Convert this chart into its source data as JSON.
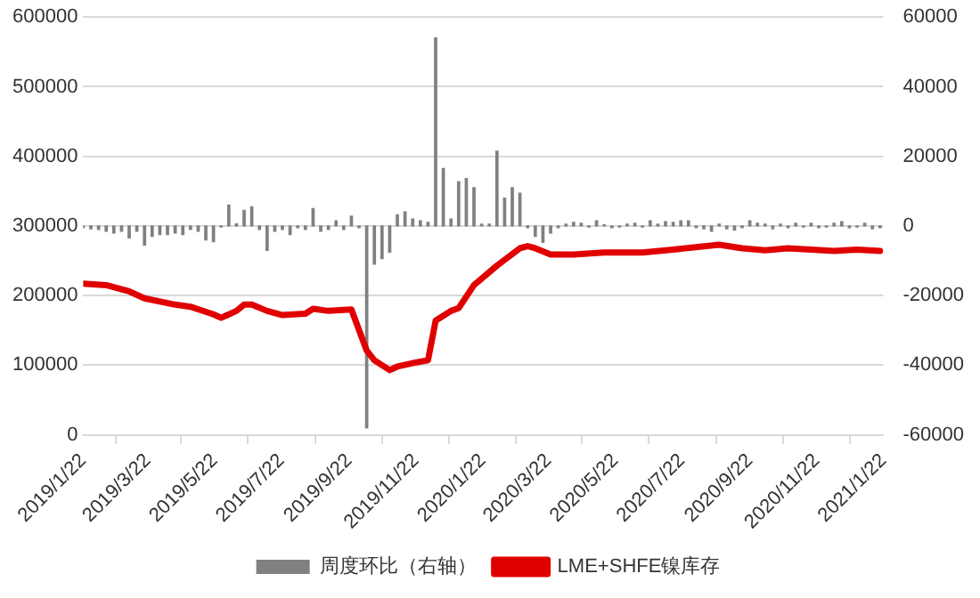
{
  "chart_data": {
    "type": "line",
    "grid": "y",
    "legend": "bottom",
    "xlim": [
      "2019-01-22",
      "2021-01-22"
    ],
    "xticks": [
      {
        "value": "2019-01-22",
        "label": "2019/1/22"
      },
      {
        "value": "2019-03-22",
        "label": "2019/3/22"
      },
      {
        "value": "2019-05-22",
        "label": "2019/5/22"
      },
      {
        "value": "2019-07-22",
        "label": "2019/7/22"
      },
      {
        "value": "2019-09-22",
        "label": "2019/9/22"
      },
      {
        "value": "2019-11-22",
        "label": "2019/11/22"
      },
      {
        "value": "2020-01-22",
        "label": "2020/1/22"
      },
      {
        "value": "2020-03-22",
        "label": "2020/3/22"
      },
      {
        "value": "2020-05-22",
        "label": "2020/5/22"
      },
      {
        "value": "2020-07-22",
        "label": "2020/7/22"
      },
      {
        "value": "2020-09-22",
        "label": "2020/9/22"
      },
      {
        "value": "2020-11-22",
        "label": "2020/11/22"
      },
      {
        "value": "2021-01-22",
        "label": "2021/1/22"
      }
    ],
    "ylim": [
      0,
      600000
    ],
    "yticks": [
      0,
      100000,
      200000,
      300000,
      400000,
      500000,
      600000
    ],
    "y2lim": [
      -60000,
      60000
    ],
    "y2ticks": [
      -60000,
      -40000,
      -20000,
      0,
      20000,
      40000,
      60000
    ],
    "series": [
      {
        "name": "周度环比（右轴）",
        "type": "bar",
        "axis": "y2",
        "color": "#808080",
        "x": [
          "2019-01-22",
          "2019-01-29",
          "2019-02-05",
          "2019-02-12",
          "2019-02-19",
          "2019-02-26",
          "2019-03-05",
          "2019-03-12",
          "2019-03-19",
          "2019-03-26",
          "2019-04-02",
          "2019-04-09",
          "2019-04-16",
          "2019-04-23",
          "2019-04-30",
          "2019-05-07",
          "2019-05-14",
          "2019-05-21",
          "2019-05-28",
          "2019-06-04",
          "2019-06-11",
          "2019-06-18",
          "2019-06-25",
          "2019-07-02",
          "2019-07-09",
          "2019-07-16",
          "2019-07-23",
          "2019-07-30",
          "2019-08-06",
          "2019-08-13",
          "2019-08-20",
          "2019-08-27",
          "2019-09-03",
          "2019-09-10",
          "2019-09-17",
          "2019-09-24",
          "2019-10-01",
          "2019-10-08",
          "2019-10-15",
          "2019-10-22",
          "2019-10-29",
          "2019-11-05",
          "2019-11-12",
          "2019-11-19",
          "2019-11-26",
          "2019-12-03",
          "2019-12-10",
          "2019-12-17",
          "2019-12-24",
          "2019-12-31",
          "2020-01-07",
          "2020-01-14",
          "2020-01-21",
          "2020-01-28",
          "2020-02-04",
          "2020-02-11",
          "2020-02-18",
          "2020-02-25",
          "2020-03-03",
          "2020-03-10",
          "2020-03-17",
          "2020-03-24",
          "2020-03-31",
          "2020-04-07",
          "2020-04-14",
          "2020-04-21",
          "2020-04-28",
          "2020-05-05",
          "2020-05-12",
          "2020-05-19",
          "2020-05-26",
          "2020-06-02",
          "2020-06-09",
          "2020-06-16",
          "2020-06-23",
          "2020-06-30",
          "2020-07-07",
          "2020-07-14",
          "2020-07-21",
          "2020-07-28",
          "2020-08-04",
          "2020-08-11",
          "2020-08-18",
          "2020-08-25",
          "2020-09-01",
          "2020-09-08",
          "2020-09-15",
          "2020-09-22",
          "2020-09-29",
          "2020-10-06",
          "2020-10-13",
          "2020-10-20",
          "2020-10-27",
          "2020-11-03",
          "2020-11-10",
          "2020-11-17",
          "2020-11-24",
          "2020-12-01",
          "2020-12-08",
          "2020-12-15",
          "2020-12-22",
          "2020-12-29",
          "2021-01-05",
          "2021-01-12",
          "2021-01-19"
        ],
        "values": [
          -500,
          -800,
          -1000,
          -1500,
          -2000,
          -1500,
          -3400,
          -1500,
          -5500,
          -3000,
          -2500,
          -2500,
          -2000,
          -2500,
          -1000,
          -1500,
          -4000,
          -4500,
          -300,
          6000,
          600,
          4500,
          5500,
          -1000,
          -7000,
          -1500,
          -1000,
          -2500,
          -500,
          -1000,
          5000,
          -1500,
          -1000,
          1500,
          -1000,
          2800,
          -500,
          -58000,
          -11000,
          -9400,
          -7500,
          3200,
          4000,
          2000,
          1500,
          1000,
          54000,
          16500,
          2000,
          12700,
          13600,
          11000,
          500,
          500,
          21500,
          8000,
          11000,
          9400,
          -500,
          -3000,
          -4700,
          -2000,
          -500,
          500,
          1000,
          800,
          -300,
          1500,
          300,
          -500,
          -300,
          500,
          800,
          -300,
          1500,
          500,
          1200,
          1000,
          1500,
          1500,
          -500,
          -800,
          -1500,
          500,
          -800,
          -1200,
          -500,
          1500,
          800,
          500,
          -800,
          500,
          -500,
          800,
          -300,
          800,
          -500,
          -300,
          800,
          1200,
          -500,
          -300,
          800,
          -800,
          -500
        ]
      },
      {
        "name": "LME+SHFE镍库存",
        "color": "#e00000",
        "x": [
          "2019-01-22",
          "2019-02-12",
          "2019-03-05",
          "2019-03-19",
          "2019-04-16",
          "2019-04-30",
          "2019-05-21",
          "2019-05-28",
          "2019-06-11",
          "2019-06-18",
          "2019-06-25",
          "2019-07-09",
          "2019-07-23",
          "2019-08-13",
          "2019-08-20",
          "2019-09-03",
          "2019-09-24",
          "2019-10-08",
          "2019-10-15",
          "2019-10-29",
          "2019-11-05",
          "2019-11-19",
          "2019-12-03",
          "2019-12-10",
          "2019-12-24",
          "2019-12-31",
          "2020-01-14",
          "2020-02-04",
          "2020-02-25",
          "2020-03-03",
          "2020-03-10",
          "2020-03-24",
          "2020-04-14",
          "2020-05-12",
          "2020-06-16",
          "2020-07-14",
          "2020-08-25",
          "2020-09-15",
          "2020-10-06",
          "2020-10-27",
          "2020-12-08",
          "2020-12-29",
          "2021-01-19"
        ],
        "values": [
          217000,
          215000,
          206000,
          196000,
          187000,
          184000,
          173000,
          168000,
          178000,
          187000,
          187000,
          178000,
          172000,
          174000,
          181000,
          178000,
          180000,
          121000,
          107000,
          93000,
          98000,
          103000,
          107000,
          164000,
          178000,
          182000,
          215000,
          243000,
          268000,
          271000,
          268000,
          259000,
          259000,
          262000,
          262000,
          266000,
          273000,
          268000,
          265000,
          268000,
          264000,
          266000,
          264000
        ]
      }
    ]
  }
}
